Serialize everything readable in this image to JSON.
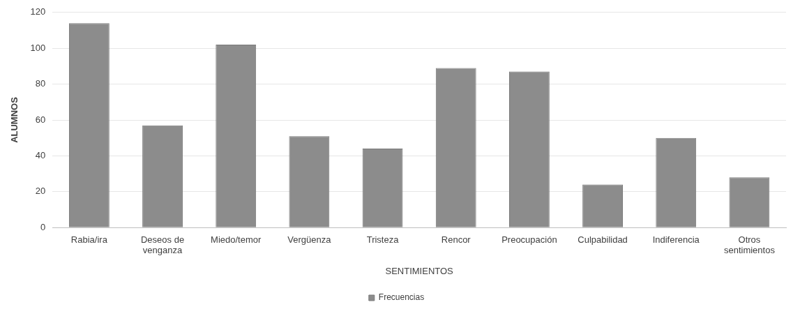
{
  "chart_data": {
    "type": "bar",
    "xlabel": "SENTIMIENTOS",
    "ylabel": "ALUMNOS",
    "categories": [
      "Rabia/ira",
      "Deseos de venganza",
      "Miedo/temor",
      "Vergüenza",
      "Tristeza",
      "Rencor",
      "Preocupación",
      "Culpabilidad",
      "Indiferencia",
      "Otros sentimientos"
    ],
    "series": [
      {
        "name": "Frecuencias",
        "color": "#8c8c8c",
        "values": [
          114,
          57,
          102,
          51,
          44,
          89,
          87,
          24,
          50,
          28
        ]
      }
    ],
    "ylim": [
      0,
      120
    ],
    "yticks": [
      0,
      20,
      40,
      60,
      80,
      100,
      120
    ],
    "grid": "y",
    "legend": "bottom"
  }
}
